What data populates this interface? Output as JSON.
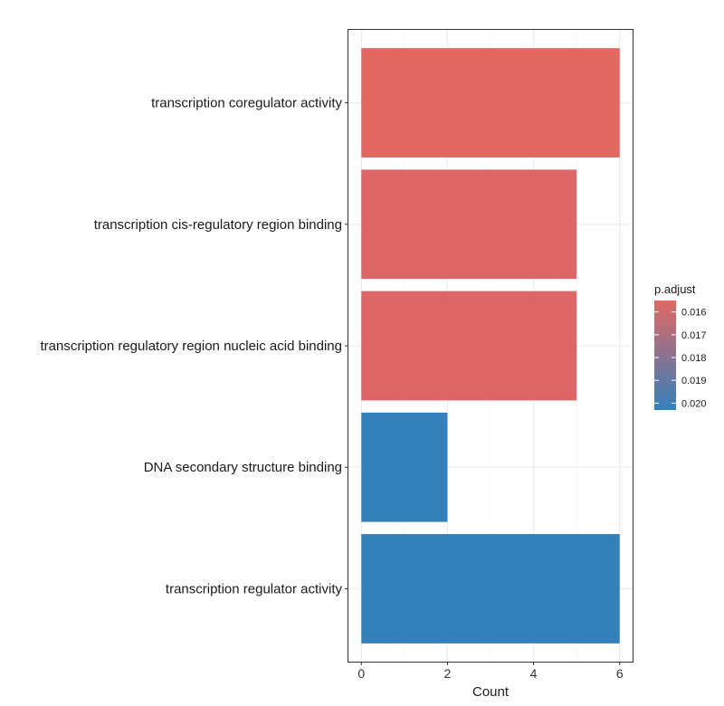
{
  "chart_data": {
    "type": "bar",
    "orientation": "horizontal",
    "categories": [
      "transcription coregulator activity",
      "transcription cis-regulatory region binding",
      "transcription regulatory region nucleic acid binding",
      "DNA secondary structure binding",
      "transcription regulator activity"
    ],
    "values": [
      6,
      5,
      5,
      2,
      6
    ],
    "p_adjust": [
      0.0155,
      0.0158,
      0.0158,
      0.0203,
      0.0203
    ],
    "bar_colors": [
      "#E26864",
      "#DD6668",
      "#DD6668",
      "#3480BA",
      "#3480BA"
    ],
    "xlabel": "Count",
    "ylabel": "",
    "xlim": [
      -0.3,
      6.3
    ],
    "xticks": [
      "0",
      "2",
      "4",
      "6"
    ],
    "grid": true,
    "legend": {
      "title": "p.adjust",
      "position": "right",
      "color_low": "#E26864",
      "color_high": "#3480BA",
      "range": [
        0.0155,
        0.0203
      ],
      "labels": [
        "0.016",
        "0.017",
        "0.018",
        "0.019",
        "0.020"
      ]
    }
  }
}
